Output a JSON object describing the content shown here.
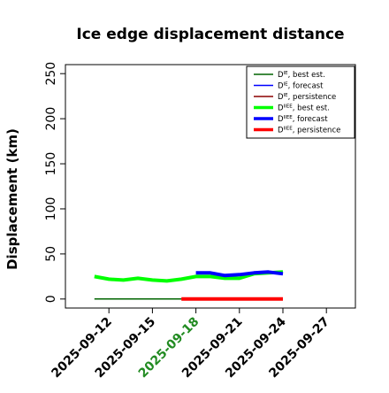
{
  "chart_data": {
    "type": "line",
    "title": "Ice edge displacement distance",
    "ylabel": "Displacement (km)",
    "xlabel": "",
    "xlim": [
      "2025-09-09",
      "2025-09-29"
    ],
    "ylim": [
      -10,
      260
    ],
    "yticks": [
      0,
      50,
      100,
      150,
      200,
      250
    ],
    "xticks": [
      "2025-09-12",
      "2025-09-15",
      "2025-09-18",
      "2025-09-21",
      "2025-09-24",
      "2025-09-27"
    ],
    "xtick_colors": [
      "#000000",
      "#000000",
      "#228B22",
      "#000000",
      "#000000",
      "#000000"
    ],
    "grid": false,
    "legend_position": "top-right",
    "legend": [
      {
        "sup": "IE",
        "text": ", best est."
      },
      {
        "sup": "IE",
        "text": ", forecast"
      },
      {
        "sup": "IE",
        "text": ", persistence"
      },
      {
        "sup": "IIEE",
        "text": ", best est."
      },
      {
        "sup": "IIEE",
        "text": ", forecast"
      },
      {
        "sup": "IIEE",
        "text": ", persistence"
      }
    ],
    "series": [
      {
        "color": "#006400",
        "width": 1.5,
        "x": [
          "2025-09-11",
          "2025-09-12",
          "2025-09-13",
          "2025-09-14",
          "2025-09-15",
          "2025-09-16",
          "2025-09-17"
        ],
        "y": [
          0,
          0,
          0,
          0,
          0,
          0,
          0
        ]
      },
      {
        "color": "#0000ff",
        "width": 1.5,
        "x": [
          "2025-09-18",
          "2025-09-19",
          "2025-09-20",
          "2025-09-21",
          "2025-09-22",
          "2025-09-23",
          "2025-09-24"
        ],
        "y": [
          0,
          0,
          0,
          0,
          0,
          0,
          0
        ]
      },
      {
        "color": "#8b0000",
        "width": 1.5,
        "x": [
          "2025-09-17",
          "2025-09-18",
          "2025-09-19",
          "2025-09-20",
          "2025-09-21",
          "2025-09-22",
          "2025-09-23",
          "2025-09-24"
        ],
        "y": [
          0,
          0,
          0,
          0,
          0,
          0,
          0,
          0
        ]
      },
      {
        "color": "#00ff00",
        "width": 4,
        "x": [
          "2025-09-11",
          "2025-09-12",
          "2025-09-13",
          "2025-09-14",
          "2025-09-15",
          "2025-09-16",
          "2025-09-17",
          "2025-09-18",
          "2025-09-19",
          "2025-09-20",
          "2025-09-21",
          "2025-09-22",
          "2025-09-23",
          "2025-09-24"
        ],
        "y": [
          25,
          22,
          21,
          23,
          21,
          20,
          22,
          25,
          25,
          23,
          23,
          28,
          29,
          30
        ]
      },
      {
        "color": "#0000ff",
        "width": 4,
        "x": [
          "2025-09-18",
          "2025-09-19",
          "2025-09-20",
          "2025-09-21",
          "2025-09-22",
          "2025-09-23",
          "2025-09-24"
        ],
        "y": [
          29,
          29,
          26,
          27,
          29,
          30,
          28
        ]
      },
      {
        "color": "#ff0000",
        "width": 4,
        "x": [
          "2025-09-17",
          "2025-09-18",
          "2025-09-19",
          "2025-09-20",
          "2025-09-21",
          "2025-09-22",
          "2025-09-23",
          "2025-09-24"
        ],
        "y": [
          0,
          0,
          0,
          0,
          0,
          0,
          0,
          0
        ]
      }
    ]
  }
}
